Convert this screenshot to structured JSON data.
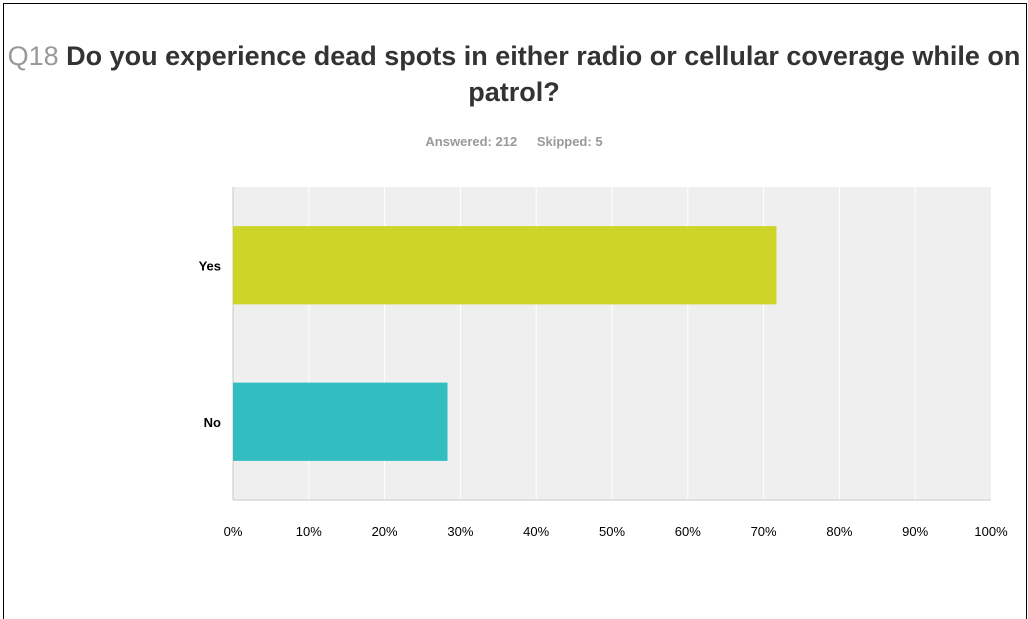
{
  "header": {
    "question_number": "Q18",
    "question_text": "Do you experience dead spots in either radio or cellular coverage while on patrol?",
    "answered": "Answered: 212",
    "skipped": "Skipped: 5"
  },
  "colors": {
    "plot_background": "#efefef",
    "gridline": "#ffffff",
    "axis": "#c8c8c8",
    "title_number": "#999999",
    "title_text": "#333333"
  },
  "chart_data": {
    "type": "bar",
    "orientation": "horizontal",
    "title": "Q18 Do you experience dead spots in either radio or cellular coverage while on patrol?",
    "subtitle": "Answered: 212    Skipped: 5",
    "categories": [
      "Yes",
      "No"
    ],
    "values": [
      71.7,
      28.3
    ],
    "colors": [
      "#cfd428",
      "#32bec1"
    ],
    "xlabel": "",
    "ylabel": "",
    "xlim": [
      0,
      100
    ],
    "x_ticks": [
      "0%",
      "10%",
      "20%",
      "30%",
      "40%",
      "50%",
      "60%",
      "70%",
      "80%",
      "90%",
      "100%"
    ],
    "grid": true,
    "legend": "none"
  }
}
